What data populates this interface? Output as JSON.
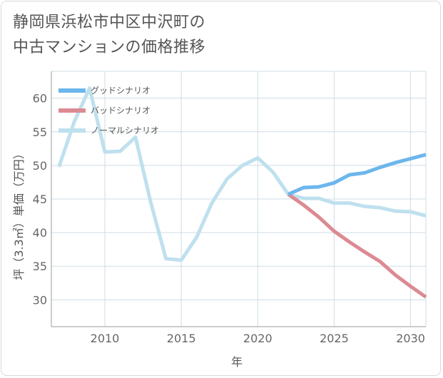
{
  "title_line1": "静岡県浜松市中区中沢町の",
  "title_line2": "中古マンションの価格推移",
  "colors": {
    "good": "#6cb6ec",
    "bad": "#dc8a92",
    "normal": "#bfe0ee",
    "grid": "#cfdde6",
    "axis": "#999999"
  },
  "chart_data": {
    "type": "line",
    "title": "静岡県浜松市中区中沢町の中古マンションの価格推移",
    "xlabel": "年",
    "ylabel": "坪（3.3㎡）単価（万円）",
    "xlim": [
      2006.5,
      2031
    ],
    "ylim": [
      26,
      64
    ],
    "xticks": [
      2010,
      2015,
      2020,
      2025,
      2030
    ],
    "yticks": [
      30,
      35,
      40,
      45,
      50,
      55,
      60
    ],
    "grid": true,
    "legend_position": "top-left",
    "series": [
      {
        "name": "グッドシナリオ",
        "color": "#6cb6ec",
        "x": [
          2022,
          2023,
          2024,
          2025,
          2026,
          2027,
          2028,
          2029,
          2030,
          2031
        ],
        "y": [
          45.7,
          46.7,
          46.8,
          47.4,
          48.6,
          48.9,
          49.7,
          50.4,
          51.0,
          51.6
        ]
      },
      {
        "name": "バッドシナリオ",
        "color": "#dc8a92",
        "x": [
          2022,
          2023,
          2024,
          2025,
          2026,
          2027,
          2028,
          2029,
          2030,
          2031
        ],
        "y": [
          45.7,
          44.1,
          42.3,
          40.2,
          38.6,
          37.1,
          35.7,
          33.7,
          32.0,
          30.4
        ]
      },
      {
        "name": "ノーマルシナリオ",
        "color": "#bfe0ee",
        "x": [
          2007,
          2008,
          2009,
          2010,
          2011,
          2012,
          2013,
          2014,
          2015,
          2016,
          2017,
          2018,
          2019,
          2020,
          2021,
          2022,
          2023,
          2024,
          2025,
          2026,
          2027,
          2028,
          2029,
          2030,
          2031
        ],
        "y": [
          49.8,
          56.5,
          61.5,
          52.0,
          52.1,
          54.2,
          44.5,
          36.1,
          35.9,
          39.3,
          44.4,
          48.0,
          50.0,
          51.1,
          49.0,
          45.7,
          45.1,
          45.1,
          44.4,
          44.4,
          43.9,
          43.7,
          43.2,
          43.1,
          42.5
        ]
      }
    ]
  }
}
